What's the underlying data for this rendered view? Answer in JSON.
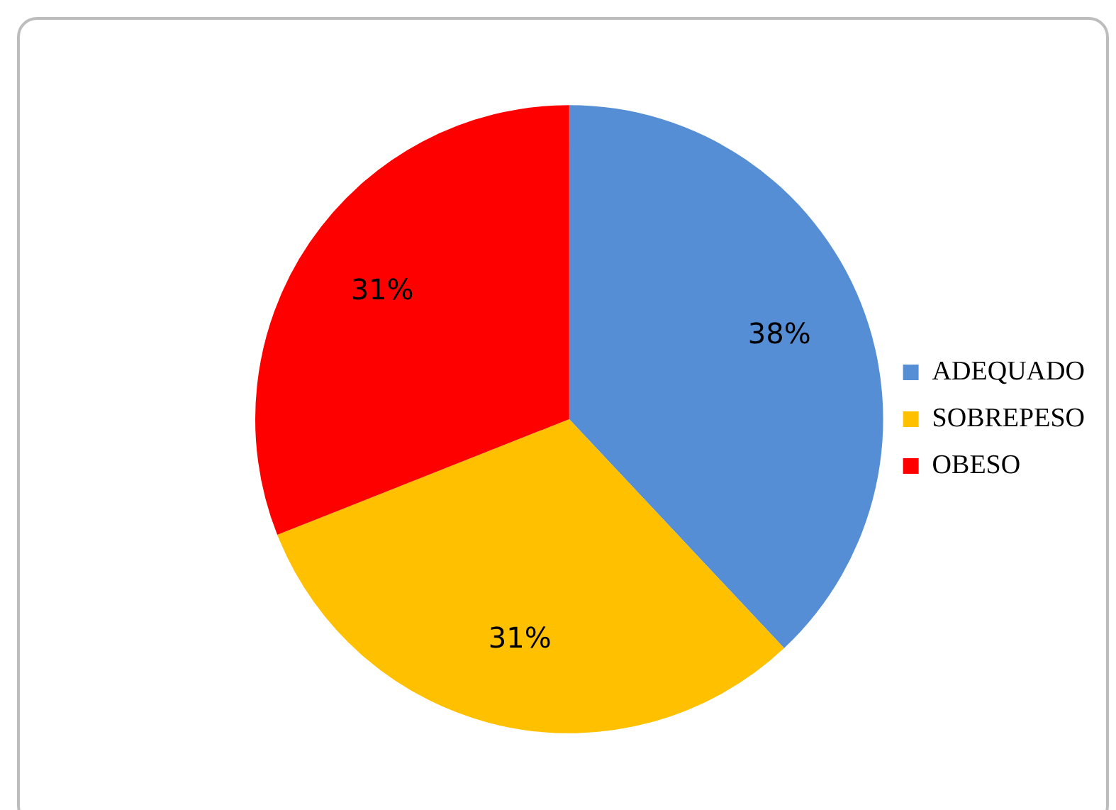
{
  "chart_data": {
    "type": "pie",
    "categories": [
      "ADEQUADO",
      "SOBREPESO",
      "OBESO"
    ],
    "values": [
      38,
      31,
      31
    ],
    "colors": [
      "#558ed5",
      "#ffc000",
      "#ff0000"
    ],
    "value_labels": [
      "38%",
      "31%",
      "31%"
    ],
    "legend": "right"
  }
}
